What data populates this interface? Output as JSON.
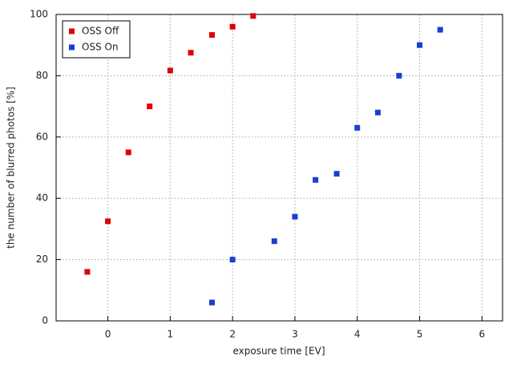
{
  "chart_data": {
    "type": "scatter",
    "x_label": "exposure time [EV]",
    "y_label": "the number of blurred photos [%]",
    "xlim": [
      -0.83,
      6.33
    ],
    "ylim": [
      0,
      100
    ],
    "xticks": [
      0,
      1,
      2,
      3,
      4,
      5,
      6
    ],
    "yticks": [
      0,
      20,
      40,
      60,
      80,
      100
    ],
    "grid": true,
    "legend": "upper-left",
    "series": [
      {
        "name": "OSS Off",
        "color": "#e00000",
        "x": [
          -0.33,
          0,
          0.33,
          0.67,
          1,
          1.33,
          1.67,
          2,
          2.33
        ],
        "values": [
          16,
          32.5,
          55,
          70,
          81.7,
          87.5,
          93.3,
          96,
          99.5
        ]
      },
      {
        "name": "OSS On",
        "color": "#1a3fd0",
        "x": [
          1.67,
          2,
          2.67,
          3,
          3.33,
          3.67,
          4,
          4.33,
          4.67,
          5,
          5.33
        ],
        "values": [
          6,
          20,
          26,
          34,
          46,
          48,
          63,
          68,
          80,
          90,
          95
        ]
      }
    ]
  }
}
